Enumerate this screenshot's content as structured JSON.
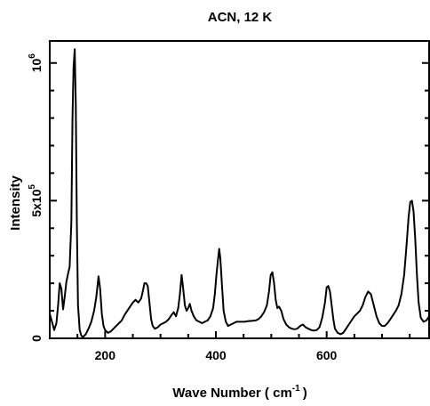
{
  "chart_data": {
    "type": "line",
    "title": "ACN, 12 K",
    "xlabel": {
      "main": "Wave Number ( cm",
      "sup": "-1",
      "end": ")"
    },
    "ylabel": "Intensity",
    "xlim": [
      100,
      785
    ],
    "ylim": [
      0,
      1080000
    ],
    "x_ticks": [
      {
        "value": 200,
        "label": "200"
      },
      {
        "value": 400,
        "label": "400"
      },
      {
        "value": 600,
        "label": "600"
      }
    ],
    "y_ticks": [
      {
        "value": 0,
        "base": "0",
        "exp": ""
      },
      {
        "value": 500000,
        "base": "5x10",
        "exp": "5"
      },
      {
        "value": 1000000,
        "base": "10",
        "exp": "6"
      }
    ],
    "series": [
      {
        "x": [
          100,
          104,
          108,
          112,
          115,
          118,
          121,
          124,
          127,
          130,
          133,
          136,
          139,
          141,
          143,
          145,
          147,
          149,
          151,
          154,
          157,
          160,
          165,
          170,
          175,
          180,
          184,
          188,
          191,
          194,
          197,
          200,
          205,
          210,
          215,
          220,
          225,
          230,
          235,
          240,
          245,
          250,
          255,
          260,
          265,
          268,
          271,
          274,
          277,
          280,
          283,
          286,
          290,
          295,
          300,
          305,
          310,
          315,
          320,
          324,
          328,
          332,
          335,
          338,
          341,
          344,
          347,
          350,
          353,
          356,
          360,
          365,
          370,
          375,
          380,
          385,
          390,
          395,
          398,
          401,
          404,
          406,
          408,
          411,
          414,
          418,
          422,
          427,
          432,
          437,
          442,
          447,
          452,
          457,
          462,
          467,
          472,
          477,
          482,
          487,
          492,
          496,
          499,
          502,
          505,
          508,
          511,
          514,
          518,
          522,
          527,
          532,
          537,
          542,
          547,
          552,
          557,
          562,
          567,
          572,
          577,
          582,
          587,
          592,
          597,
          600,
          603,
          606,
          609,
          612,
          615,
          620,
          625,
          630,
          640,
          650,
          655,
          660,
          665,
          670,
          675,
          680,
          685,
          690,
          695,
          700,
          705,
          710,
          715,
          720,
          725,
          730,
          735,
          740,
          744,
          748,
          751,
          754,
          757,
          760,
          763,
          766,
          770,
          775,
          780,
          785
        ],
        "y": [
          90000,
          60000,
          30000,
          55000,
          120000,
          200000,
          180000,
          105000,
          150000,
          205000,
          235000,
          260000,
          420000,
          800000,
          985000,
          1050000,
          850000,
          420000,
          120000,
          30000,
          10000,
          5000,
          15000,
          35000,
          60000,
          100000,
          150000,
          225000,
          180000,
          90000,
          45000,
          30000,
          20000,
          25000,
          35000,
          45000,
          55000,
          65000,
          85000,
          100000,
          115000,
          130000,
          140000,
          130000,
          145000,
          170000,
          200000,
          200000,
          190000,
          130000,
          70000,
          45000,
          35000,
          40000,
          50000,
          55000,
          60000,
          70000,
          85000,
          95000,
          80000,
          110000,
          160000,
          230000,
          180000,
          120000,
          100000,
          110000,
          125000,
          100000,
          80000,
          65000,
          60000,
          55000,
          60000,
          65000,
          80000,
          110000,
          160000,
          230000,
          290000,
          325000,
          290000,
          190000,
          100000,
          60000,
          45000,
          50000,
          55000,
          60000,
          60000,
          60000,
          60000,
          62000,
          63000,
          64000,
          65000,
          70000,
          80000,
          95000,
          120000,
          170000,
          230000,
          240000,
          200000,
          140000,
          110000,
          115000,
          100000,
          70000,
          50000,
          40000,
          35000,
          33000,
          35000,
          45000,
          50000,
          40000,
          35000,
          30000,
          28000,
          30000,
          40000,
          75000,
          130000,
          185000,
          190000,
          170000,
          120000,
          70000,
          35000,
          20000,
          15000,
          20000,
          50000,
          80000,
          90000,
          100000,
          120000,
          150000,
          170000,
          160000,
          120000,
          80000,
          55000,
          45000,
          45000,
          55000,
          70000,
          85000,
          100000,
          120000,
          160000,
          230000,
          330000,
          440000,
          495000,
          500000,
          460000,
          360000,
          230000,
          130000,
          75000,
          60000,
          65000,
          80000
        ]
      }
    ]
  }
}
